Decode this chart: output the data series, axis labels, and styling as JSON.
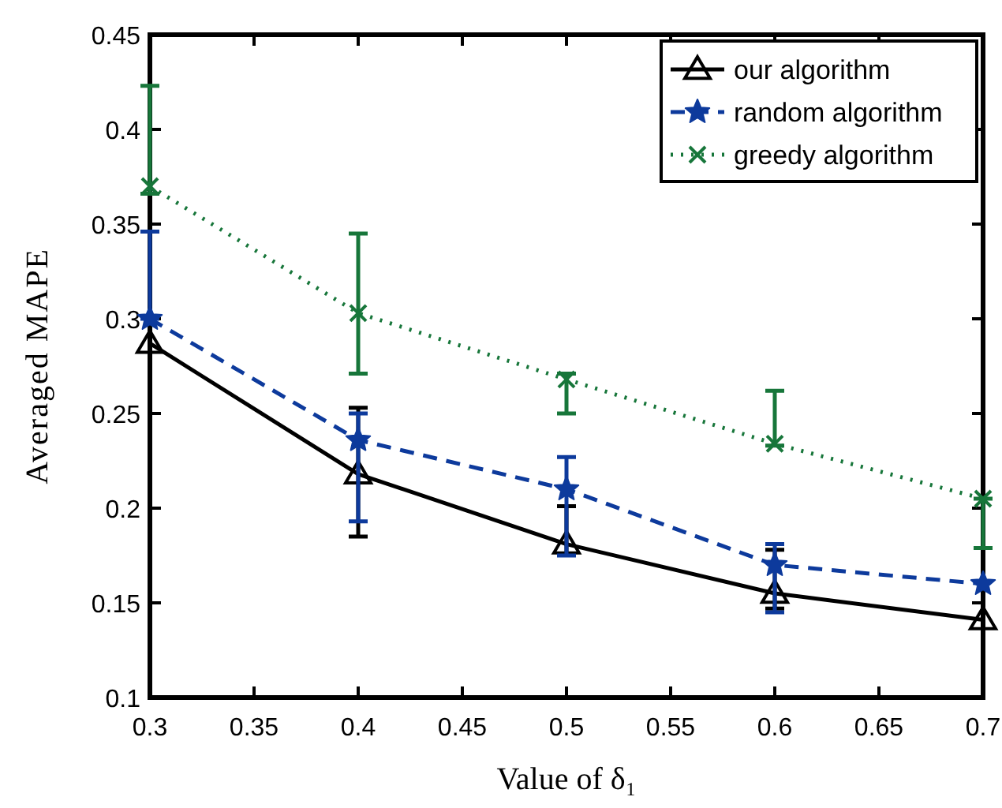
{
  "chart_data": {
    "type": "line",
    "xlabel": "Value of δ₁",
    "ylabel": "Averaged MAPE",
    "x": [
      0.3,
      0.4,
      0.5,
      0.6,
      0.7
    ],
    "xlim": [
      0.3,
      0.7
    ],
    "xticks": [
      0.3,
      0.35,
      0.4,
      0.45,
      0.5,
      0.55,
      0.6,
      0.65,
      0.7
    ],
    "ylim": [
      0.1,
      0.45
    ],
    "yticks": [
      0.1,
      0.15,
      0.2,
      0.25,
      0.3,
      0.35,
      0.4,
      0.45
    ],
    "grid": false,
    "legend": "top right",
    "series": [
      {
        "name": "our algorithm",
        "color": "#000000",
        "marker": "triangle",
        "line_style": "solid",
        "values": [
          0.287,
          0.218,
          0.181,
          0.155,
          0.141
        ],
        "errors": [
          null,
          [
            0.185,
            0.253
          ],
          [
            0.176,
            0.201
          ],
          [
            0.147,
            0.178
          ],
          null
        ]
      },
      {
        "name": "random algorithm",
        "color": "#0d3a9c",
        "marker": "star",
        "line_style": "dashed",
        "values": [
          0.3,
          0.236,
          0.21,
          0.17,
          0.16
        ],
        "errors": [
          [
            0.3,
            0.346
          ],
          [
            0.193,
            0.25
          ],
          [
            0.175,
            0.227
          ],
          [
            0.145,
            0.181
          ],
          null
        ]
      },
      {
        "name": "greedy algorithm",
        "color": "#17763a",
        "marker": "cross",
        "line_style": "dotted",
        "values": [
          0.37,
          0.303,
          0.268,
          0.234,
          0.205
        ],
        "errors": [
          [
            0.366,
            0.423
          ],
          [
            0.271,
            0.345
          ],
          [
            0.25,
            0.271
          ],
          [
            0.233,
            0.262
          ],
          [
            0.179,
            0.205
          ]
        ]
      }
    ]
  }
}
